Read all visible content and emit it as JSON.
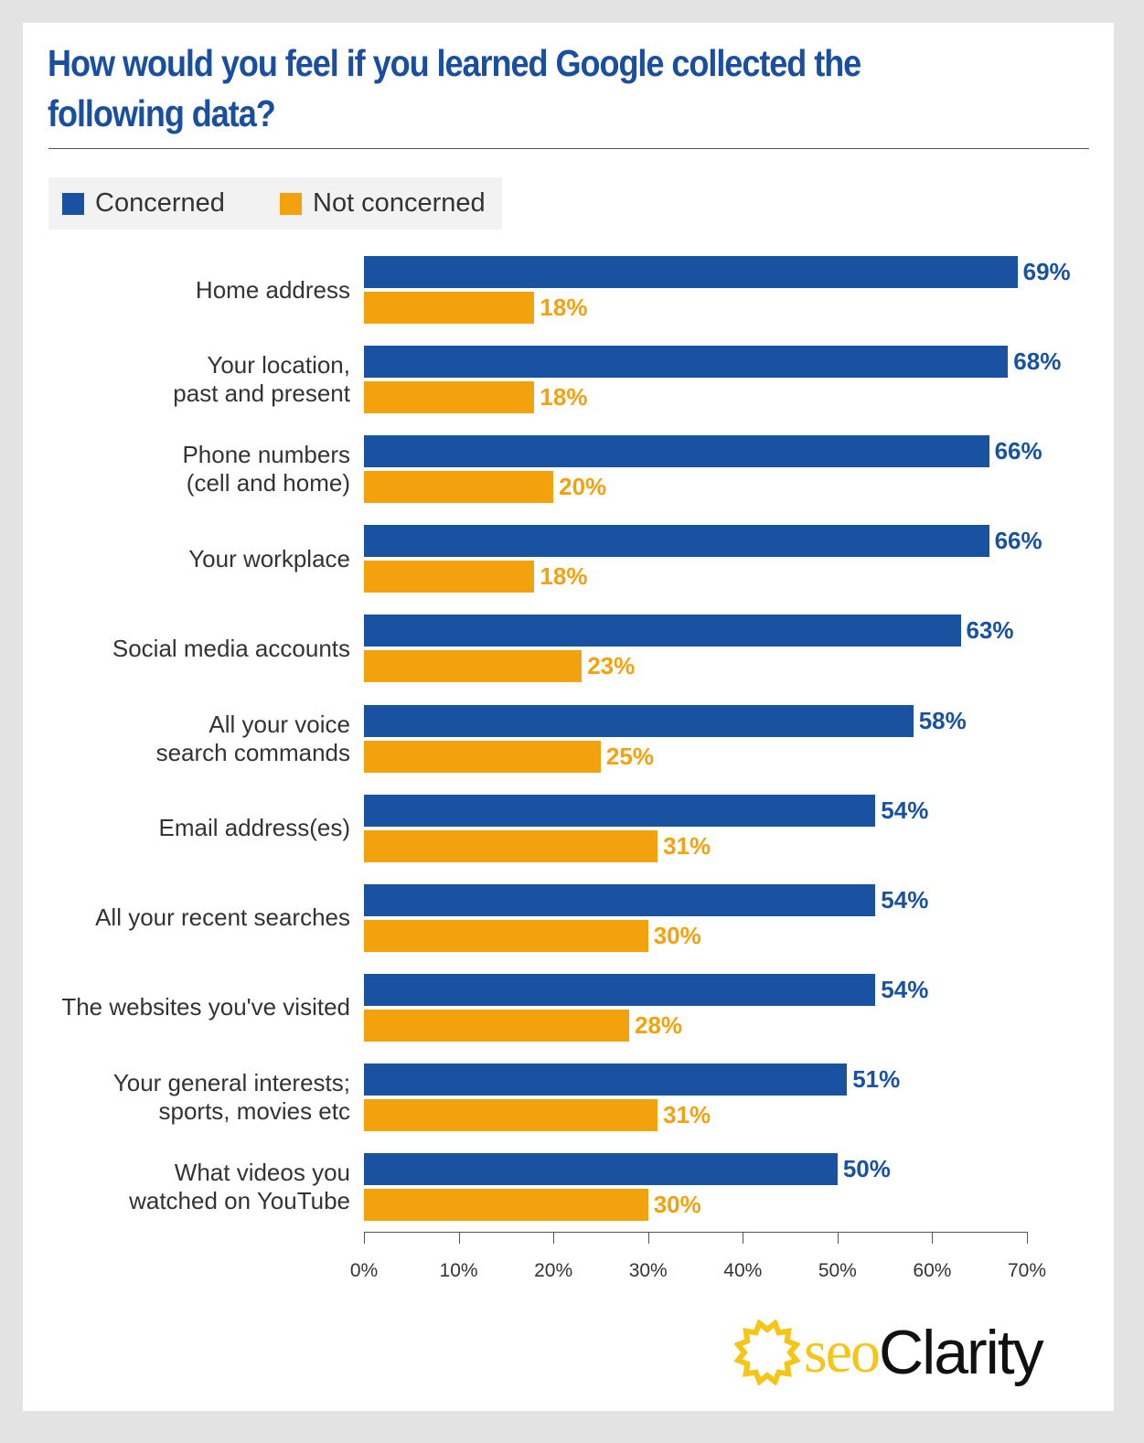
{
  "chart_data": {
    "type": "bar",
    "orientation": "horizontal",
    "title": "How would you feel if you learned Google collected the following data?",
    "categories": [
      "Home address",
      "Your location,\npast and present",
      "Phone numbers\n(cell and home)",
      "Your workplace",
      "Social media accounts",
      "All your voice\nsearch commands",
      "Email address(es)",
      "All your recent searches",
      "The websites you've visited",
      "Your general interests;\nsports, movies etc",
      "What videos you\nwatched on YouTube"
    ],
    "series": [
      {
        "name": "Concerned",
        "color": "#1a52a2",
        "values": [
          69,
          68,
          66,
          66,
          63,
          58,
          54,
          54,
          54,
          51,
          50
        ]
      },
      {
        "name": "Not concerned",
        "color": "#f4a10e",
        "values": [
          18,
          18,
          20,
          18,
          23,
          25,
          31,
          30,
          28,
          31,
          30
        ]
      }
    ],
    "xlim": [
      0,
      70
    ],
    "xticks": [
      "0%",
      "10%",
      "20%",
      "30%",
      "40%",
      "50%",
      "60%",
      "70%"
    ],
    "grid": false,
    "legend": "top-left"
  },
  "brand": {
    "logo_text_1": "seo",
    "logo_text_2": "Clarity",
    "logo_color": "#f5c518"
  }
}
